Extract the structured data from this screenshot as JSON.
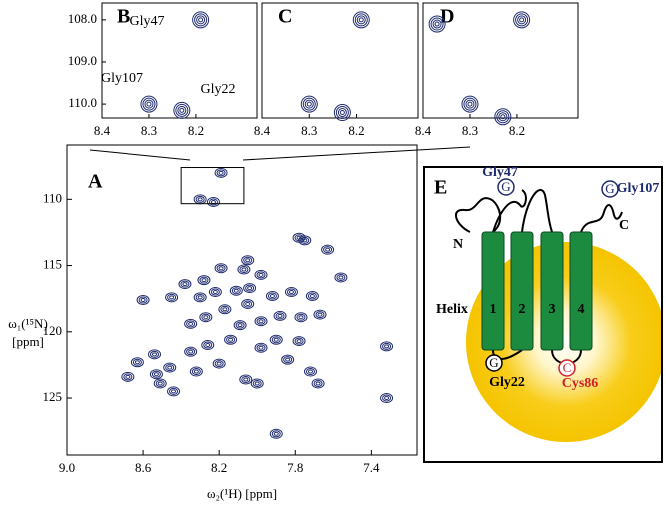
{
  "chart_data": [
    {
      "type": "scatter",
      "label": "A",
      "color": "#1f2a6e",
      "x": [
        8.3,
        8.23,
        8.19,
        8.05,
        7.78,
        7.75,
        7.63,
        7.56,
        8.19,
        8.07,
        7.98,
        8.28,
        8.38,
        8.45,
        8.3,
        8.22,
        8.11,
        8.04,
        7.92,
        7.82,
        7.71,
        8.05,
        8.17,
        8.27,
        8.35,
        8.09,
        7.98,
        7.88,
        7.77,
        7.67,
        7.9,
        7.78,
        7.98,
        8.14,
        8.26,
        8.35,
        8.54,
        8.63,
        8.46,
        8.32,
        8.2,
        7.84,
        7.72,
        8.06,
        8.53,
        8.68,
        8.51,
        7.68,
        8.0,
        7.9,
        8.6,
        7.32,
        7.32,
        8.44
      ],
      "y": [
        110.0,
        110.2,
        108.0,
        114.6,
        112.9,
        113.1,
        113.8,
        115.9,
        115.2,
        115.3,
        115.7,
        116.1,
        116.4,
        117.4,
        117.4,
        117.0,
        116.9,
        116.7,
        117.3,
        117.0,
        117.3,
        117.9,
        118.3,
        118.9,
        119.4,
        119.5,
        119.2,
        118.8,
        118.9,
        118.7,
        120.6,
        120.7,
        121.2,
        120.6,
        121.0,
        121.5,
        121.7,
        122.3,
        122.7,
        123.0,
        122.4,
        122.1,
        123.0,
        123.6,
        123.2,
        123.4,
        123.9,
        123.9,
        123.9,
        127.7,
        117.6,
        121.1,
        125.0,
        124.5
      ],
      "xlim": [
        9.0,
        7.16
      ],
      "ylim": [
        105.9,
        129.3
      ],
      "xticks": [
        {
          "value": 9.0,
          "label": "9.0"
        },
        8.6,
        8.2,
        7.8,
        7.4
      ],
      "yticks": [
        110,
        115,
        120,
        125
      ],
      "xlabel": "ω₂(¹H) [ppm]",
      "ylabel": [
        "ω₁(¹⁵N)",
        "[ppm]"
      ]
    },
    {
      "type": "scatter",
      "label": "B",
      "color": "#1f2a6e",
      "x": [
        8.19,
        8.3,
        8.23
      ],
      "y": [
        108.0,
        110.0,
        110.15
      ],
      "xlim": [
        8.4,
        8.07
      ],
      "ylim": [
        107.6,
        110.33
      ],
      "xticks": [
        8.4,
        8.3,
        8.2
      ],
      "yticks": [
        {
          "value": 108,
          "label": "108.0"
        },
        {
          "value": 109,
          "label": "109.0"
        },
        {
          "value": 110,
          "label": "110.0"
        }
      ],
      "annotations": [
        "Gly47",
        "Gly107",
        "Gly22"
      ]
    },
    {
      "type": "scatter",
      "label": "C",
      "color": "#1f2a6e",
      "x": [
        8.19,
        8.3,
        8.23
      ],
      "y": [
        108.0,
        110.0,
        110.2
      ],
      "xlim": [
        8.4,
        8.07
      ],
      "ylim": [
        107.6,
        110.33
      ],
      "xticks": [
        8.4,
        8.3,
        8.2
      ]
    },
    {
      "type": "scatter",
      "label": "D",
      "color": "#1f2a6e",
      "x": [
        8.19,
        8.3,
        8.23,
        8.37
      ],
      "y": [
        108.0,
        110.0,
        110.3,
        108.1
      ],
      "xlim": [
        8.4,
        8.07
      ],
      "ylim": [
        107.6,
        110.33
      ],
      "xticks": [
        8.4,
        8.3,
        8.2
      ]
    }
  ],
  "diagram": {
    "label": "E",
    "helix_label": "Helix",
    "helices": [
      "1",
      "2",
      "3",
      "4"
    ],
    "termini": [
      "N",
      "C"
    ],
    "residues": [
      {
        "name": "Gly47",
        "symbol": "G"
      },
      {
        "name": "Gly107",
        "symbol": "G"
      },
      {
        "name": "Gly22",
        "symbol": "G"
      },
      {
        "name": "Cys86",
        "symbol": "C"
      }
    ]
  }
}
